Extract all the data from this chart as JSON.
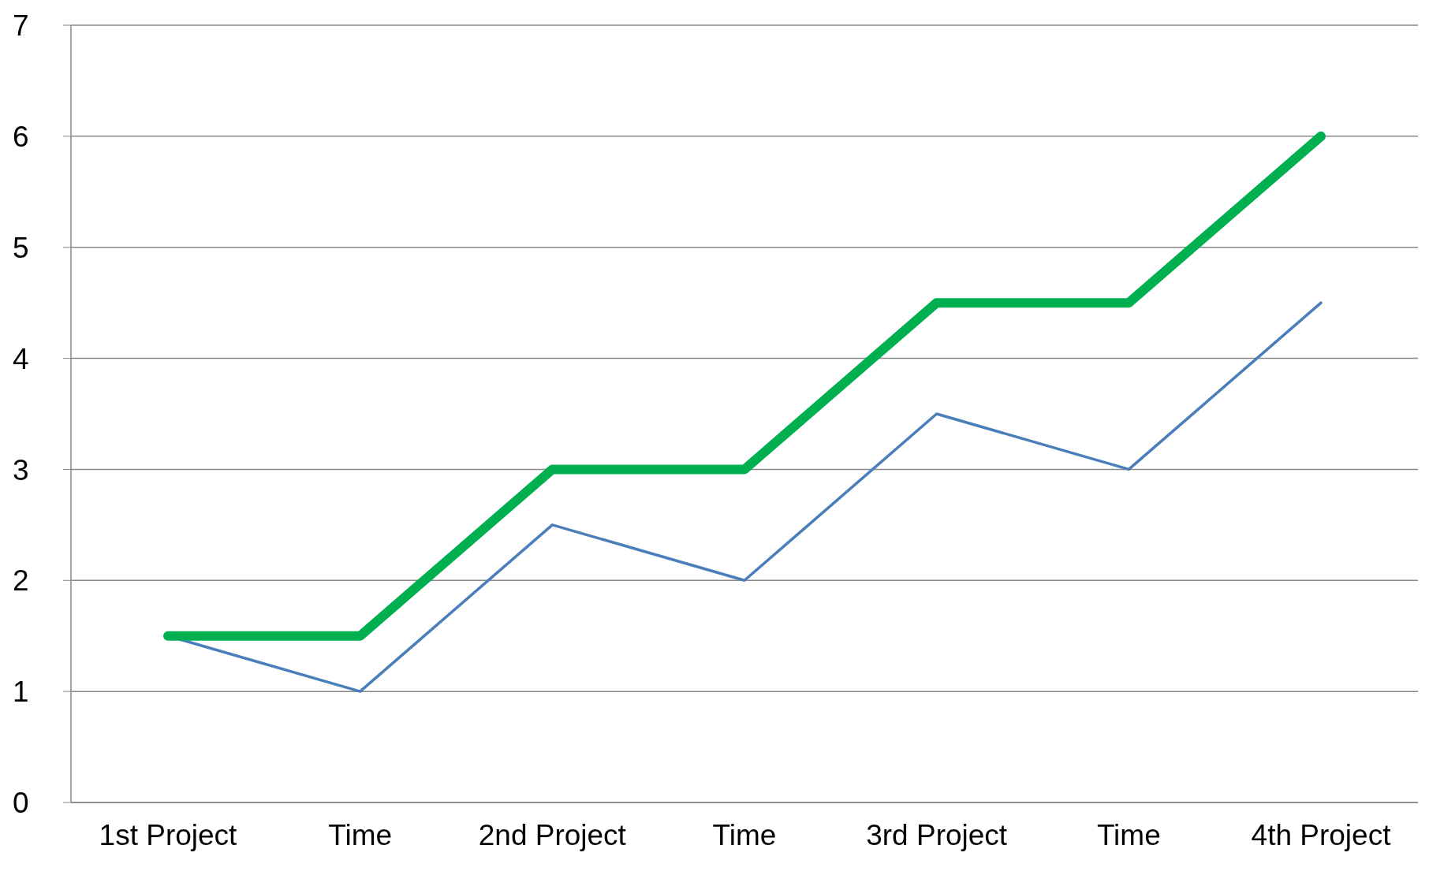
{
  "chart_data": {
    "type": "line",
    "categories": [
      "1st Project",
      "Time",
      "2nd Project",
      "Time",
      "3rd Project",
      "Time",
      "4th Project"
    ],
    "series": [
      {
        "color": "#4a7ebb",
        "values": [
          1.5,
          1,
          2.5,
          2,
          3.5,
          3,
          4.5
        ]
      },
      {
        "color": "#00b050",
        "values": [
          1.5,
          1.5,
          3,
          3,
          4.5,
          4.5,
          6
        ]
      }
    ],
    "ylim": [
      0,
      7
    ],
    "yticks": [
      0,
      1,
      2,
      3,
      4,
      5,
      6,
      7
    ],
    "grid": "y",
    "legend": false,
    "marker": "none",
    "line_style": "solid"
  }
}
